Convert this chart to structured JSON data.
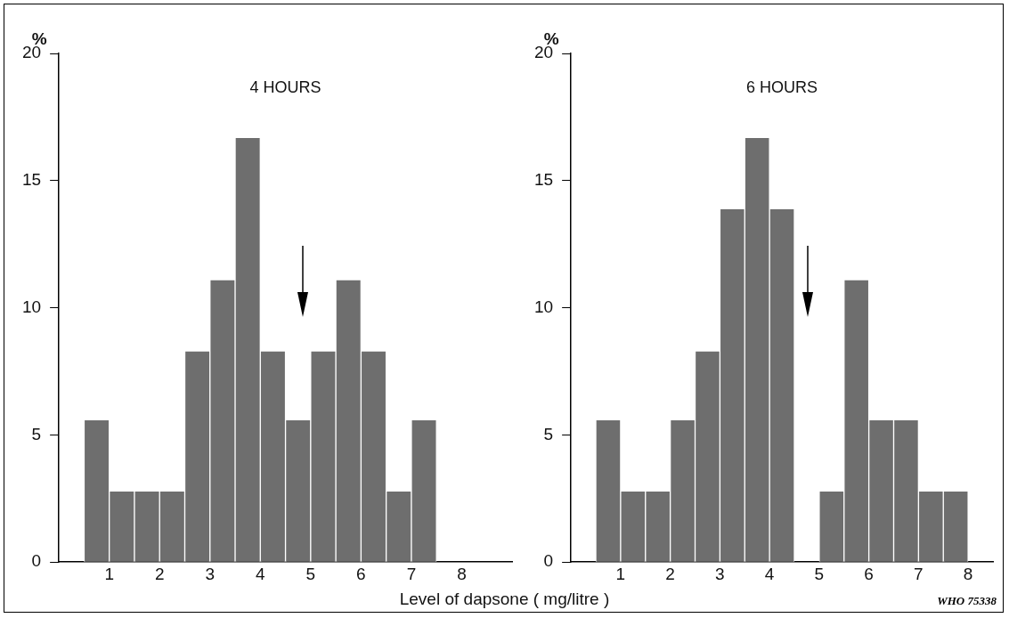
{
  "chart_data": [
    {
      "type": "histogram",
      "title": "4 HOURS",
      "ylabel": "%",
      "xlabel": "Level of dapsone ( mg/litre )",
      "bins": [
        0.5,
        1,
        1.5,
        2,
        2.5,
        3,
        3.5,
        4,
        4.5,
        5,
        5.5,
        6,
        6.5,
        7,
        7.5
      ],
      "values": [
        5.6,
        2.8,
        2.8,
        2.8,
        8.3,
        11.1,
        16.7,
        8.3,
        5.6,
        8.3,
        11.1,
        8.3,
        2.8,
        5.6
      ],
      "color": "#6e6e6e",
      "xlim": [
        0,
        9
      ],
      "xticks": [
        1,
        2,
        3,
        4,
        5,
        6,
        7,
        8
      ],
      "ylim": [
        0,
        20
      ],
      "yticks": [
        0,
        5,
        10,
        15,
        20
      ],
      "grid": false
    },
    {
      "type": "histogram",
      "title": "6 HOURS",
      "ylabel": "%",
      "bins": [
        0.5,
        1,
        1.5,
        2,
        2.5,
        3,
        3.5,
        4,
        4.5,
        5,
        5.5,
        6,
        6.5,
        7,
        7.5,
        8
      ],
      "values": [
        5.6,
        2.8,
        2.8,
        5.6,
        8.3,
        13.9,
        16.7,
        13.9,
        0,
        2.8,
        11.1,
        5.6,
        5.6,
        2.8,
        2.8
      ],
      "color": "#6e6e6e",
      "xlim": [
        0,
        8.5
      ],
      "xticks": [
        1,
        2,
        3,
        4,
        5,
        6,
        7,
        8
      ],
      "ylim": [
        0,
        20
      ],
      "yticks": [
        0,
        5,
        10,
        15,
        20
      ],
      "grid": false,
      "annotations": [
        "WHO 75338"
      ]
    }
  ]
}
